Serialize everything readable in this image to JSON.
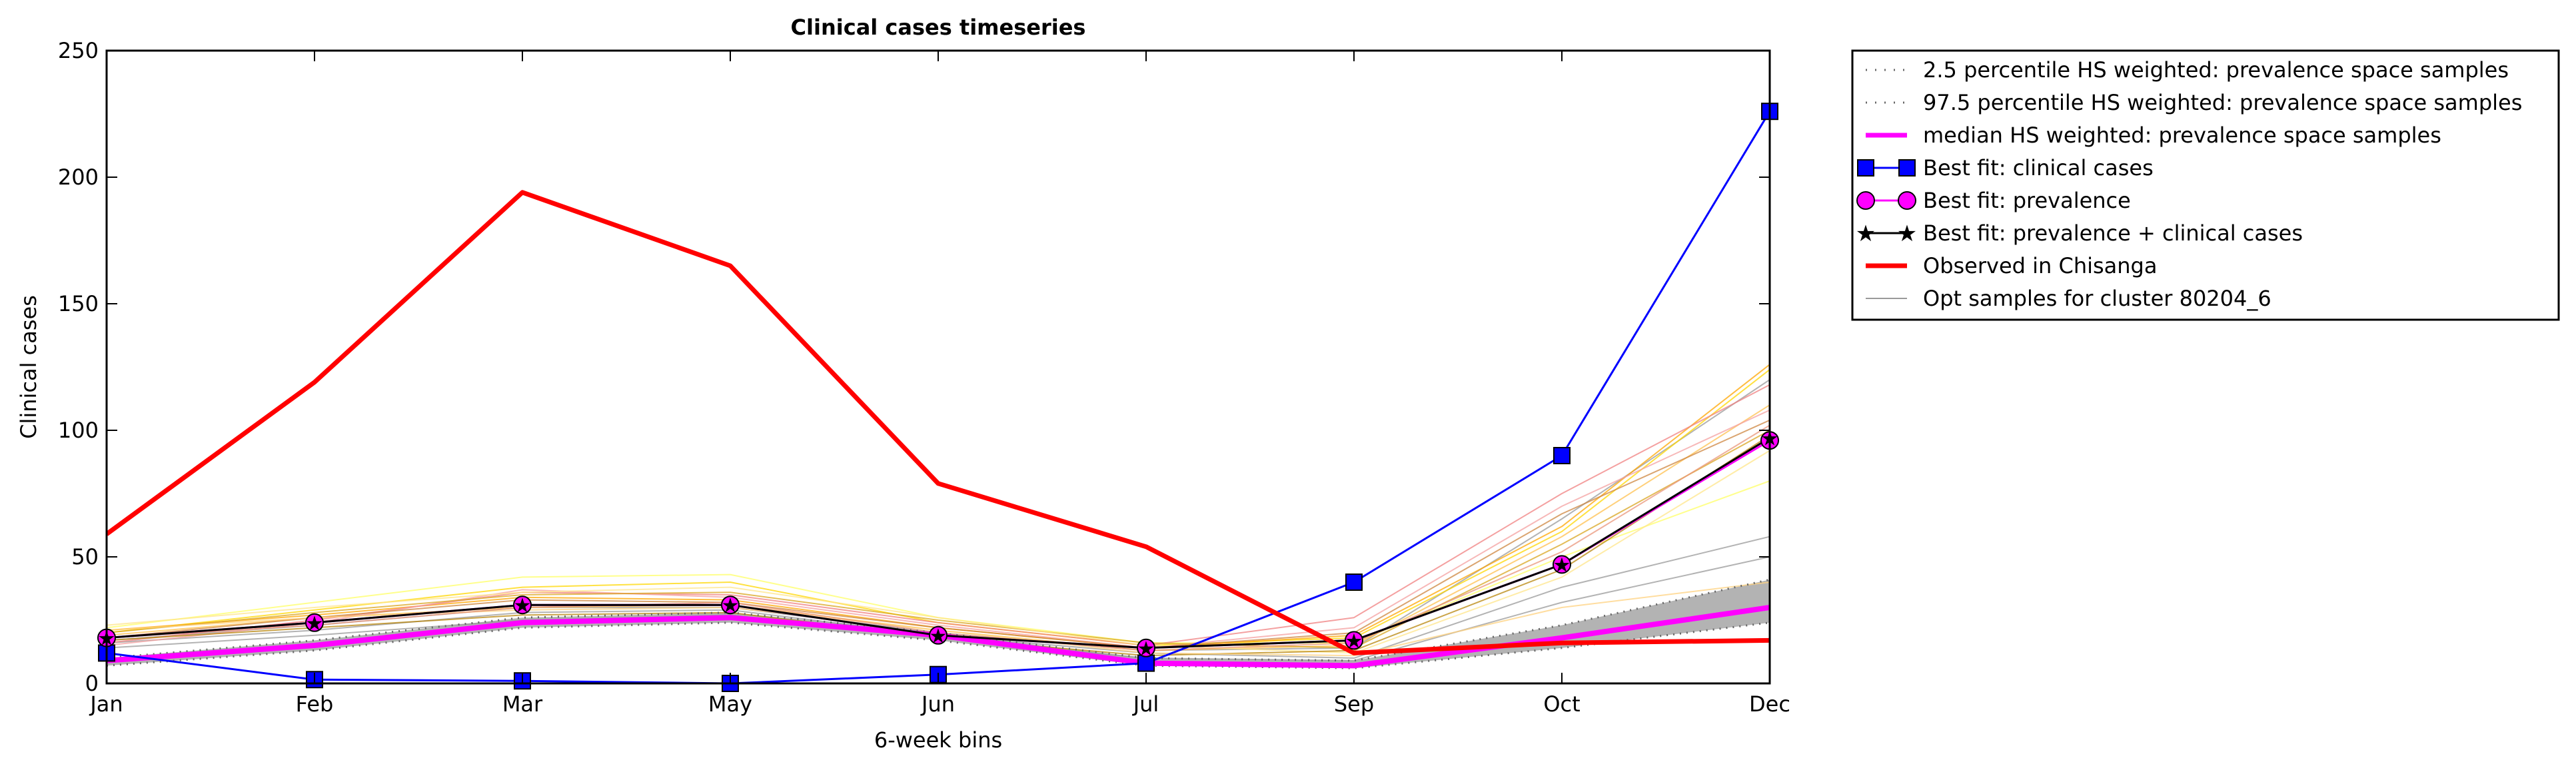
{
  "chart_data": {
    "type": "line",
    "title": "Clinical cases timeseries",
    "xlabel": "6-week bins",
    "ylabel": "Clinical cases",
    "categories": [
      "Jan",
      "Feb",
      "Mar",
      "May",
      "Jun",
      "Jul",
      "Sep",
      "Oct",
      "Dec"
    ],
    "ylim": [
      0,
      250
    ],
    "yticks": [
      0,
      50,
      100,
      150,
      200,
      250
    ],
    "grid": false,
    "legend_position": "outside-right",
    "legend": [
      {
        "label": "2.5 percentile HS weighted: prevalence space samples",
        "style": "dotted",
        "color": "#808080"
      },
      {
        "label": "97.5 percentile HS weighted: prevalence space samples",
        "style": "dotted",
        "color": "#808080"
      },
      {
        "label": "median HS weighted: prevalence space samples",
        "style": "line",
        "color": "#ff00ff"
      },
      {
        "label": "Best fit: clinical cases",
        "style": "square-marker",
        "color": "#0000ff"
      },
      {
        "label": "Best fit: prevalence",
        "style": "circle-marker",
        "color": "#ff00ff"
      },
      {
        "label": "Best fit: prevalence + clinical cases",
        "style": "star-marker",
        "color": "#000000"
      },
      {
        "label": "Observed in Chisanga",
        "style": "line",
        "color": "#ff0000"
      },
      {
        "label": "Opt samples for cluster 80204_6",
        "style": "line",
        "color": "#999999"
      }
    ],
    "series": [
      {
        "name": "2.5 percentile HS weighted: prevalence space samples",
        "color": "#666666",
        "style": "dotted",
        "values": [
          7,
          13,
          22,
          24,
          17,
          7,
          6,
          14,
          24
        ]
      },
      {
        "name": "97.5 percentile HS weighted: prevalence space samples",
        "color": "#666666",
        "style": "dotted",
        "values": [
          10,
          17,
          26,
          28,
          20,
          10,
          9,
          23,
          41
        ]
      },
      {
        "name": "median HS weighted: prevalence space samples",
        "color": "#ff00ff",
        "style": "line",
        "values": [
          9,
          15,
          24,
          26,
          19,
          8,
          7,
          18,
          30
        ]
      },
      {
        "name": "Best fit: clinical cases",
        "color": "#0000ff",
        "style": "square-marker",
        "values": [
          12,
          1.5,
          1,
          0,
          3.5,
          8,
          40,
          90,
          226
        ]
      },
      {
        "name": "Best fit: prevalence",
        "color": "#ff00ff",
        "style": "circle-marker",
        "values": [
          18,
          24,
          31,
          31,
          19,
          14,
          17,
          47,
          96
        ]
      },
      {
        "name": "Best fit: prevalence + clinical cases",
        "color": "#000000",
        "style": "star-marker",
        "values": [
          18,
          24,
          31,
          31,
          19,
          14,
          17,
          47,
          97
        ]
      },
      {
        "name": "Observed in Chisanga",
        "color": "#ff0000",
        "style": "line",
        "values": [
          59,
          119,
          194,
          165,
          79,
          54,
          12,
          16,
          17
        ]
      },
      {
        "name": "Opt samples for cluster 80204_6",
        "color": "#999999",
        "style": "thin",
        "values": [
          16,
          21,
          28,
          29,
          19,
          12,
          10,
          38,
          58
        ]
      },
      {
        "color": "#999999",
        "style": "thin",
        "values": [
          14,
          19,
          25,
          27,
          18,
          10,
          9,
          32,
          50
        ]
      },
      {
        "color": "#999999",
        "style": "thin",
        "values": [
          17,
          23,
          30,
          30,
          20,
          13,
          14,
          65,
          120
        ]
      },
      {
        "color": "#ffd700",
        "style": "thin",
        "values": [
          20,
          29,
          38,
          40,
          24,
          15,
          18,
          60,
          124
        ]
      },
      {
        "color": "#ffff66",
        "style": "thin",
        "values": [
          22,
          32,
          42,
          43,
          26,
          16,
          16,
          50,
          80
        ]
      },
      {
        "color": "#ffa500",
        "style": "thin",
        "values": [
          21,
          27,
          34,
          33,
          22,
          14,
          19,
          62,
          126
        ]
      },
      {
        "color": "#ffc04d",
        "style": "thin",
        "values": [
          19,
          26,
          30,
          31,
          21,
          13,
          15,
          58,
          110
        ]
      },
      {
        "color": "#f08080",
        "style": "thin",
        "values": [
          16,
          25,
          36,
          35,
          24,
          15,
          26,
          75,
          118
        ]
      },
      {
        "color": "#f4a0a0",
        "style": "thin",
        "values": [
          15,
          24,
          37,
          34,
          23,
          14,
          22,
          70,
          108
        ]
      },
      {
        "color": "#cd853f",
        "style": "thin",
        "values": [
          18,
          26,
          33,
          32,
          22,
          14,
          20,
          67,
          104
        ]
      },
      {
        "color": "#daa520",
        "style": "thin",
        "values": [
          20,
          28,
          35,
          36,
          25,
          16,
          14,
          55,
          100
        ]
      },
      {
        "color": "#ffe58a",
        "style": "thin",
        "values": [
          23,
          30,
          36,
          38,
          26,
          15,
          12,
          42,
          92
        ]
      },
      {
        "color": "#b8860b",
        "style": "thin",
        "values": [
          17,
          22,
          27,
          28,
          18,
          11,
          13,
          45,
          98
        ]
      },
      {
        "color": "#ffd27f",
        "style": "thin",
        "values": [
          21,
          26,
          29,
          30,
          21,
          12,
          11,
          30,
          40
        ]
      },
      {
        "color": "#e9967a",
        "style": "thin",
        "values": [
          18,
          23,
          30,
          32,
          20,
          13,
          16,
          52,
          102
        ]
      }
    ]
  }
}
